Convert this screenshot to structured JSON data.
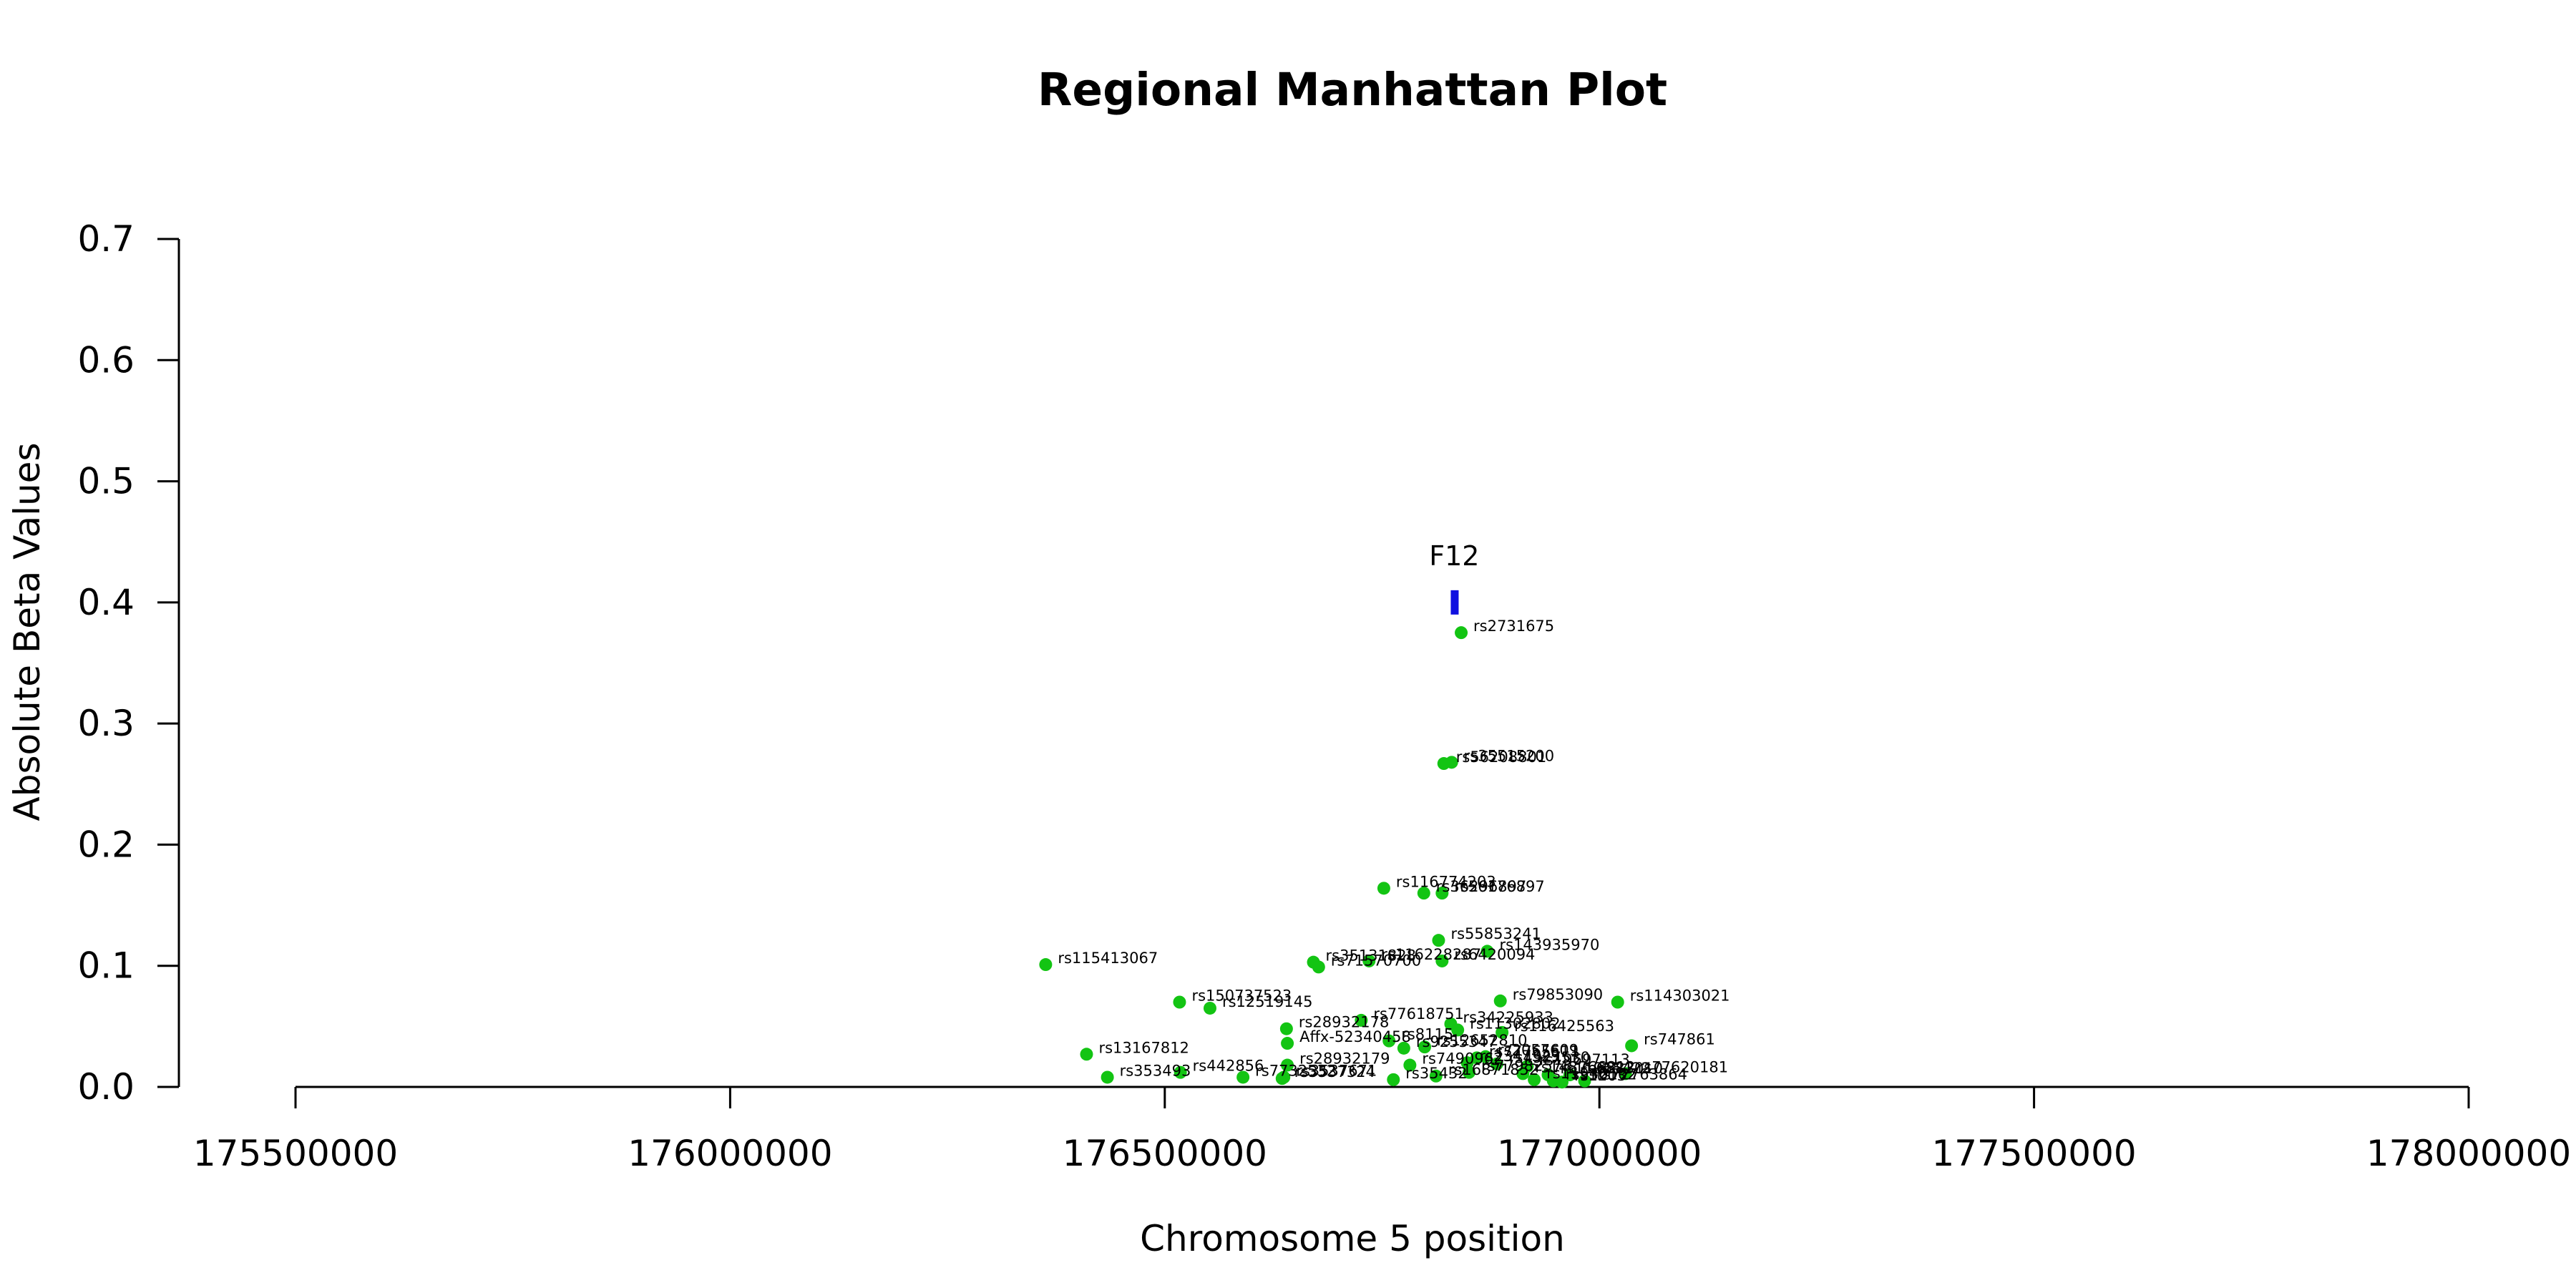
{
  "chart_data": {
    "type": "scatter",
    "title": "Regional Manhattan Plot",
    "xlabel": "Chromosome 5 position",
    "ylabel": "Absolute Beta Values",
    "xlim": [
      175500000,
      178000000
    ],
    "ylim": [
      0,
      0.7
    ],
    "x_ticks": [
      175500000,
      176000000,
      176500000,
      177000000,
      177500000,
      178000000
    ],
    "y_ticks": [
      0.0,
      0.1,
      0.2,
      0.3,
      0.4,
      0.5,
      0.6,
      0.7
    ],
    "x_tick_labels": [
      "175500000",
      "176000000",
      "176500000",
      "177000000",
      "177500000",
      "178000000"
    ],
    "y_tick_labels": [
      "0.0",
      "0.1",
      "0.2",
      "0.3",
      "0.4",
      "0.5",
      "0.6",
      "0.7"
    ],
    "grid": false,
    "colors": {
      "point": "#13C413",
      "gene": "#1010E0"
    },
    "genes": [
      {
        "name": "F12",
        "start": 176829000,
        "end": 176837000,
        "value": 0.4
      }
    ],
    "points": [
      {
        "label": "rs2731675",
        "x": 176841000,
        "y": 0.375
      },
      {
        "label": "rs35515200",
        "x": 176830000,
        "y": 0.268
      },
      {
        "label": "rs56208801",
        "x": 176821000,
        "y": 0.267
      },
      {
        "label": "rs116774203",
        "x": 176752000,
        "y": 0.164
      },
      {
        "label": "rs36296897",
        "x": 176798000,
        "y": 0.16
      },
      {
        "label": "rs56176897",
        "x": 176819000,
        "y": 0.16
      },
      {
        "label": "rs55853241",
        "x": 176815000,
        "y": 0.121
      },
      {
        "label": "rs143935970",
        "x": 176871000,
        "y": 0.112
      },
      {
        "label": "rs115413067",
        "x": 176363000,
        "y": 0.101
      },
      {
        "label": "rs35131828",
        "x": 176671000,
        "y": 0.103
      },
      {
        "label": "rs116228287",
        "x": 176735000,
        "y": 0.104
      },
      {
        "label": "rs6420094",
        "x": 176819000,
        "y": 0.104
      },
      {
        "label": "rs71570700",
        "x": 176677000,
        "y": 0.099
      },
      {
        "label": "rs150737523",
        "x": 176517000,
        "y": 0.07
      },
      {
        "label": "rs12519145",
        "x": 176552000,
        "y": 0.065
      },
      {
        "label": "rs79853090",
        "x": 176886000,
        "y": 0.071
      },
      {
        "label": "rs114303021",
        "x": 177021000,
        "y": 0.07
      },
      {
        "label": "rs77618751",
        "x": 176726000,
        "y": 0.055
      },
      {
        "label": "rs34225933",
        "x": 176829000,
        "y": 0.052
      },
      {
        "label": "rs28932178",
        "x": 176640000,
        "y": 0.048
      },
      {
        "label": "rs11302802",
        "x": 176837000,
        "y": 0.047
      },
      {
        "label": "rs116425563",
        "x": 176888000,
        "y": 0.045
      },
      {
        "label": "Affx-52340458",
        "x": 176641000,
        "y": 0.036
      },
      {
        "label": "rs8115",
        "x": 176758000,
        "y": 0.038
      },
      {
        "label": "rs9255347",
        "x": 176775000,
        "y": 0.032
      },
      {
        "label": "rs12652810",
        "x": 176799000,
        "y": 0.033
      },
      {
        "label": "rs747861",
        "x": 177037000,
        "y": 0.034
      },
      {
        "label": "rs13167812",
        "x": 176410000,
        "y": 0.027
      },
      {
        "label": "rs77765511",
        "x": 176859000,
        "y": 0.024
      },
      {
        "label": "rs2057609",
        "x": 176869000,
        "y": 0.025
      },
      {
        "label": "rs28932179",
        "x": 176641000,
        "y": 0.018
      },
      {
        "label": "rs7490962",
        "x": 176782000,
        "y": 0.018
      },
      {
        "label": "rs2347529",
        "x": 176848000,
        "y": 0.02
      },
      {
        "label": "rs4927530",
        "x": 176882000,
        "y": 0.019
      },
      {
        "label": "rs19697113",
        "x": 176917000,
        "y": 0.017
      },
      {
        "label": "rs442856",
        "x": 176518000,
        "y": 0.012
      },
      {
        "label": "rs7732532",
        "x": 176590000,
        "y": 0.008
      },
      {
        "label": "rs3537671",
        "x": 176637000,
        "y": 0.008
      },
      {
        "label": "rs353493",
        "x": 176434000,
        "y": 0.008
      },
      {
        "label": "rs3537324",
        "x": 176635000,
        "y": 0.007
      },
      {
        "label": "rs16871852",
        "x": 176812000,
        "y": 0.009
      },
      {
        "label": "rs77982573",
        "x": 176850000,
        "y": 0.012
      },
      {
        "label": "rs148766812",
        "x": 176912000,
        "y": 0.011
      },
      {
        "label": "rs11955422",
        "x": 176941000,
        "y": 0.01
      },
      {
        "label": "rs6883010",
        "x": 176966000,
        "y": 0.01
      },
      {
        "label": "rs77620181",
        "x": 177030000,
        "y": 0.011
      },
      {
        "label": "rs72763864",
        "x": 176983000,
        "y": 0.005
      },
      {
        "label": "rs35432",
        "x": 176763000,
        "y": 0.006
      },
      {
        "label": "rs11548",
        "x": 176925000,
        "y": 0.006
      },
      {
        "label": "rs930102",
        "x": 176947000,
        "y": 0.005
      },
      {
        "label": "rs1203",
        "x": 176957000,
        "y": 0.004
      }
    ]
  }
}
